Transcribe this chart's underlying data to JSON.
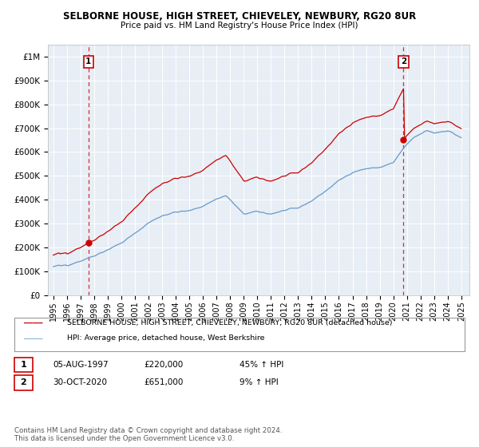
{
  "title": "SELBORNE HOUSE, HIGH STREET, CHIEVELEY, NEWBURY, RG20 8UR",
  "subtitle": "Price paid vs. HM Land Registry's House Price Index (HPI)",
  "sale1_date": "05-AUG-1997",
  "sale1_price": 220000,
  "sale1_pct": "45% ↑ HPI",
  "sale2_date": "30-OCT-2020",
  "sale2_price": 651000,
  "sale2_pct": "9% ↑ HPI",
  "footnote": "Contains HM Land Registry data © Crown copyright and database right 2024.\nThis data is licensed under the Open Government Licence v3.0.",
  "legend1": "SELBORNE HOUSE, HIGH STREET, CHIEVELEY, NEWBURY, RG20 8UR (detached house)",
  "legend2": "HPI: Average price, detached house, West Berkshire",
  "red_color": "#cc0000",
  "blue_color": "#6699cc",
  "bg_color": "#e8eef5",
  "ylim": [
    0,
    1050000
  ],
  "yticks": [
    0,
    100000,
    200000,
    300000,
    400000,
    500000,
    600000,
    700000,
    800000,
    900000,
    1000000
  ],
  "ytick_labels": [
    "£0",
    "£100K",
    "£200K",
    "£300K",
    "£400K",
    "£500K",
    "£600K",
    "£700K",
    "£800K",
    "£900K",
    "£1M"
  ]
}
